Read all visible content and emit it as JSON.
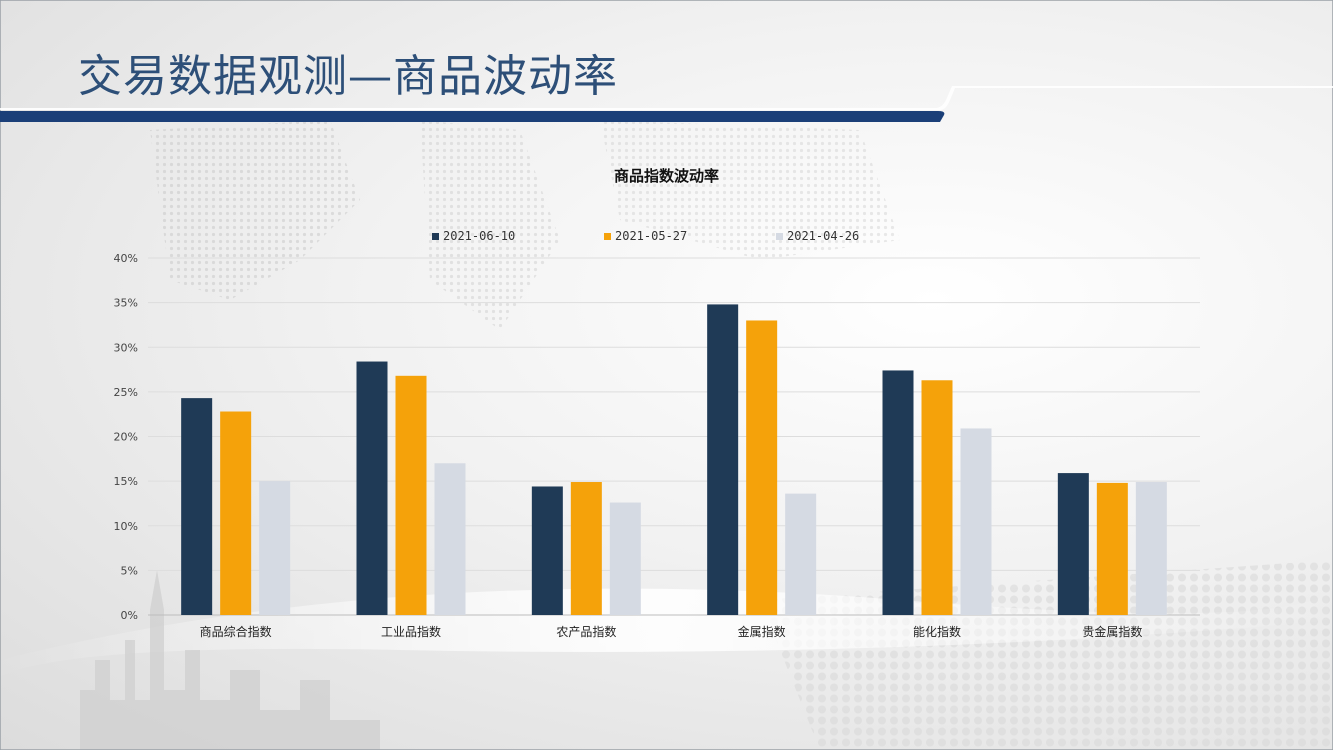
{
  "header": {
    "title": "交易数据观测—商品波动率"
  },
  "colors": {
    "series1": "#1f3a56",
    "series2": "#f5a20a",
    "series3": "#d5dae3",
    "band": "#1b3f78"
  },
  "chart_data": {
    "type": "bar",
    "title": "商品指数波动率",
    "xlabel": "",
    "ylabel": "",
    "ylim": [
      0,
      40
    ],
    "yticks": [
      "0%",
      "5%",
      "10%",
      "15%",
      "20%",
      "25%",
      "30%",
      "35%",
      "40%"
    ],
    "grid": true,
    "legend_position": "top",
    "categories": [
      "商品综合指数",
      "工业品指数",
      "农产品指数",
      "金属指数",
      "能化指数",
      "贵金属指数"
    ],
    "series": [
      {
        "name": "2021-06-10",
        "values": [
          24.3,
          28.4,
          14.4,
          34.8,
          27.4,
          15.9
        ]
      },
      {
        "name": "2021-05-27",
        "values": [
          22.8,
          26.8,
          14.9,
          33.0,
          26.3,
          14.8
        ]
      },
      {
        "name": "2021-04-26",
        "values": [
          15.0,
          17.0,
          12.6,
          13.6,
          20.9,
          14.9
        ]
      }
    ]
  }
}
